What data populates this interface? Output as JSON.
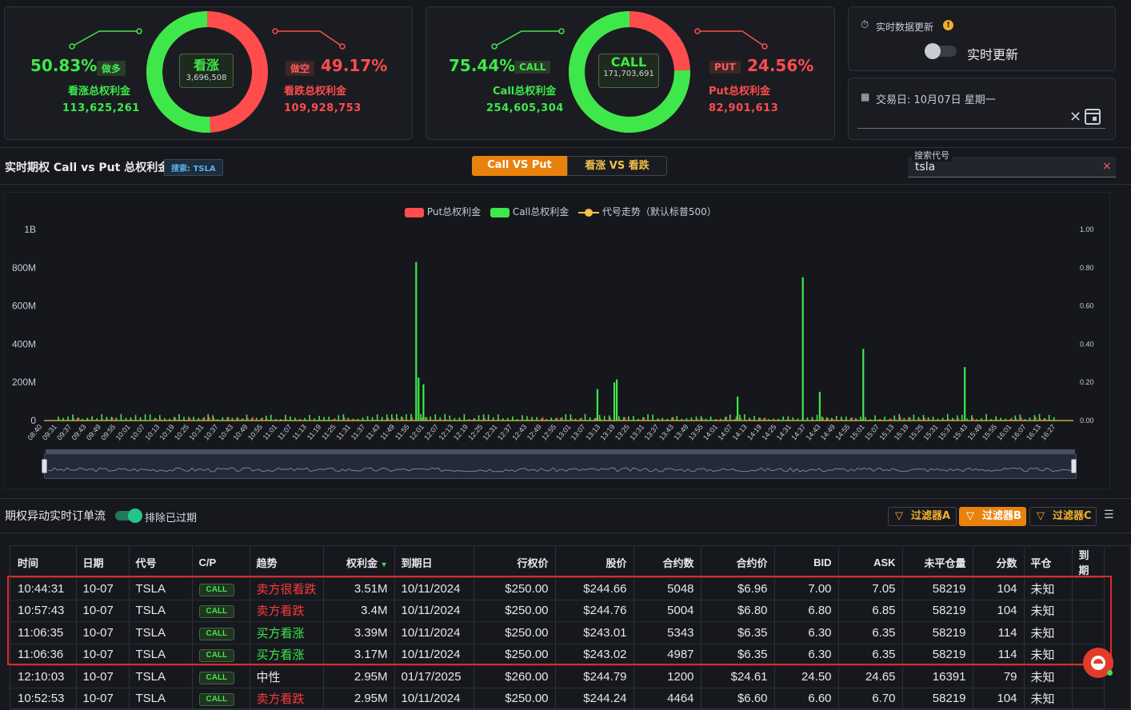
{
  "summary_left": {
    "bull_pct": "50.83%",
    "bull_tag": "做多",
    "bull_label": "看涨总权利金",
    "bull_value": "113,625,261",
    "center_title": "看涨",
    "center_value": "3,696,508",
    "bear_tag": "做空",
    "bear_pct": "49.17%",
    "bear_label": "看跌总权利金",
    "bear_value": "109,928,753",
    "ring_green_fraction": 0.5083
  },
  "summary_right": {
    "call_pct": "75.44%",
    "call_tag": "CALL",
    "call_label": "Call总权利金",
    "call_value": "254,605,304",
    "center_title": "CALL",
    "center_value": "171,703,691",
    "put_tag": "PUT",
    "put_pct": "24.56%",
    "put_label": "Put总权利金",
    "put_value": "82,901,613",
    "ring_green_fraction": 0.7544
  },
  "realtime": {
    "title": "实时数据更新",
    "toggle_label": "实时更新",
    "trade_date_label": "交易日: 10月07日 星期一"
  },
  "toolbar": {
    "section_title": "实时期权 Call vs Put 总权利金",
    "search_badge": "搜索: TSLA",
    "tab_active": "Call VS Put",
    "tab_inactive": "看涨 VS 看跌",
    "search_legend": "搜索代号",
    "search_value": "tsla",
    "clear_icon": "×"
  },
  "colors": {
    "green": "#3fe84a",
    "red": "#ff4d4d",
    "orange": "#e8820c",
    "yellow": "#f1c14a"
  },
  "chart_data": {
    "type": "bar",
    "legend": [
      "Put总权利金",
      "Call总权利金",
      "代号走势（默认标普500）"
    ],
    "y_ticks": [
      "1B",
      "800M",
      "600M",
      "400M",
      "200M",
      "0"
    ],
    "y2_ticks": [
      "1.00",
      "0.80",
      "0.60",
      "0.40",
      "0.20",
      "0.00"
    ],
    "ylim": [
      0,
      1000000000
    ],
    "x_ticks": [
      "08:40",
      "09:31",
      "09:37",
      "09:43",
      "09:49",
      "09:55",
      "10:01",
      "10:07",
      "10:13",
      "10:19",
      "10:25",
      "10:31",
      "10:37",
      "10:43",
      "10:49",
      "10:55",
      "11:01",
      "11:07",
      "11:13",
      "11:19",
      "11:25",
      "11:31",
      "11:37",
      "11:43",
      "11:49",
      "11:55",
      "12:01",
      "12:07",
      "12:13",
      "12:19",
      "12:25",
      "12:31",
      "12:37",
      "12:43",
      "12:49",
      "12:55",
      "13:01",
      "13:07",
      "13:13",
      "13:19",
      "13:25",
      "13:31",
      "13:37",
      "13:43",
      "13:49",
      "13:55",
      "14:01",
      "14:07",
      "14:13",
      "14:19",
      "14:25",
      "14:31",
      "14:37",
      "14:43",
      "14:49",
      "14:55",
      "15:01",
      "15:07",
      "15:13",
      "15:19",
      "15:25",
      "15:31",
      "15:37",
      "15:43",
      "15:49",
      "15:55",
      "16:01",
      "16:07",
      "16:13",
      "16:27"
    ],
    "call_spikes": [
      {
        "x": "11:59",
        "value": 830000000
      },
      {
        "x": "12:00",
        "value": 225000000
      },
      {
        "x": "12:02",
        "value": 190000000
      },
      {
        "x": "13:14",
        "value": 165000000
      },
      {
        "x": "13:21",
        "value": 200000000
      },
      {
        "x": "13:22",
        "value": 215000000
      },
      {
        "x": "14:12",
        "value": 125000000
      },
      {
        "x": "14:39",
        "value": 750000000
      },
      {
        "x": "14:46",
        "value": 150000000
      },
      {
        "x": "15:04",
        "value": 375000000
      },
      {
        "x": "15:46",
        "value": 280000000
      }
    ],
    "baseline_call": 25000000,
    "baseline_put": 10000000
  },
  "order_flow": {
    "title": "期权异动实时订单流",
    "exclude_label": "排除已过期",
    "filters": [
      "过滤器A",
      "过滤器B",
      "过滤器C"
    ],
    "columns": [
      "时间",
      "日期",
      "代号",
      "C/P",
      "趋势",
      "权利金",
      "到期日",
      "行权价",
      "股价",
      "合约数",
      "合约价",
      "BID",
      "ASK",
      "未平仓量",
      "分数",
      "平仓",
      "到期"
    ],
    "rows": [
      {
        "time": "10:44:31",
        "date": "10-07",
        "sym": "TSLA",
        "cp": "CALL",
        "trend": "卖方很看跌",
        "tc": "red",
        "prem": "3.51M",
        "exp": "10/11/2024",
        "strike": "$250.00",
        "price": "$244.66",
        "qty": "5048",
        "cprice": "$6.96",
        "bid": "7.00",
        "ask": "7.05",
        "oi": "58219",
        "score": "104",
        "close": "未知"
      },
      {
        "time": "10:57:43",
        "date": "10-07",
        "sym": "TSLA",
        "cp": "CALL",
        "trend": "卖方看跌",
        "tc": "red",
        "prem": "3.4M",
        "exp": "10/11/2024",
        "strike": "$250.00",
        "price": "$244.76",
        "qty": "5004",
        "cprice": "$6.80",
        "bid": "6.80",
        "ask": "6.85",
        "oi": "58219",
        "score": "104",
        "close": "未知"
      },
      {
        "time": "11:06:35",
        "date": "10-07",
        "sym": "TSLA",
        "cp": "CALL",
        "trend": "买方看涨",
        "tc": "green",
        "prem": "3.39M",
        "exp": "10/11/2024",
        "strike": "$250.00",
        "price": "$243.01",
        "qty": "5343",
        "cprice": "$6.35",
        "bid": "6.30",
        "ask": "6.35",
        "oi": "58219",
        "score": "114",
        "close": "未知"
      },
      {
        "time": "11:06:36",
        "date": "10-07",
        "sym": "TSLA",
        "cp": "CALL",
        "trend": "买方看涨",
        "tc": "green",
        "prem": "3.17M",
        "exp": "10/11/2024",
        "strike": "$250.00",
        "price": "$243.02",
        "qty": "4987",
        "cprice": "$6.35",
        "bid": "6.30",
        "ask": "6.35",
        "oi": "58219",
        "score": "114",
        "close": "未知"
      },
      {
        "time": "12:10:03",
        "date": "10-07",
        "sym": "TSLA",
        "cp": "CALL",
        "trend": "中性",
        "tc": "neutral",
        "prem": "2.95M",
        "exp": "01/17/2025",
        "strike": "$260.00",
        "price": "$244.79",
        "qty": "1200",
        "cprice": "$24.61",
        "bid": "24.50",
        "ask": "24.65",
        "oi": "16391",
        "score": "79",
        "close": "未知"
      },
      {
        "time": "10:52:53",
        "date": "10-07",
        "sym": "TSLA",
        "cp": "CALL",
        "trend": "卖方看跌",
        "tc": "red",
        "prem": "2.95M",
        "exp": "10/11/2024",
        "strike": "$250.00",
        "price": "$244.24",
        "qty": "4464",
        "cprice": "$6.60",
        "bid": "6.60",
        "ask": "6.70",
        "oi": "58219",
        "score": "104",
        "close": "未知"
      }
    ]
  }
}
